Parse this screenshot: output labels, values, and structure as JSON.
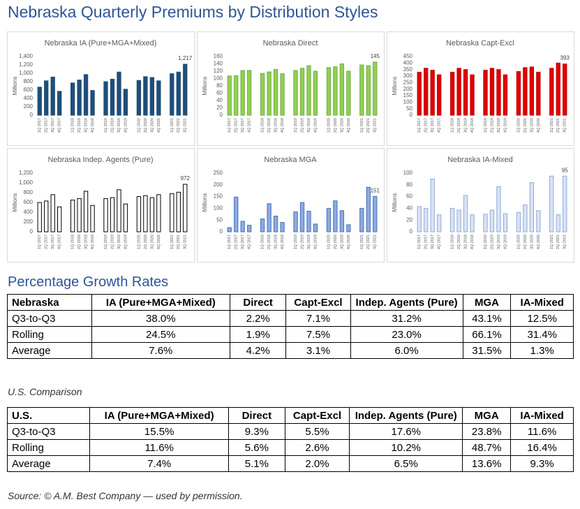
{
  "title": "Nebraska Quarterly Premiums by Distribution Styles",
  "chart_data": [
    {
      "type": "bar",
      "title": "Nebraska IA (Pure+MGA+Mixed)",
      "ylabel": "Millions",
      "color": "#1f4e79",
      "edgecolor": "#1f4e79",
      "categories": [
        "1Q 2017",
        "2Q 2017",
        "3Q 2017",
        "4Q 2017",
        null,
        "1Q 2018",
        "2Q 2018",
        "3Q 2018",
        "4Q 2018",
        null,
        "1Q 2019",
        "2Q 2019",
        "3Q 2019",
        "4Q 2019",
        null,
        "1Q 2020",
        "2Q 2020",
        "3Q 2020",
        "4Q 2020",
        null,
        "1Q 2021",
        "2Q 2021",
        "3Q 2021"
      ],
      "values": [
        670,
        820,
        910,
        570,
        null,
        770,
        840,
        970,
        590,
        null,
        800,
        860,
        1030,
        620,
        null,
        830,
        920,
        900,
        820,
        null,
        990,
        1030,
        1217
      ],
      "value_labels": [
        null,
        null,
        null,
        null,
        null,
        null,
        null,
        null,
        null,
        null,
        null,
        null,
        null,
        null,
        null,
        null,
        null,
        null,
        null,
        null,
        null,
        null,
        "1,217"
      ],
      "ylim": [
        0,
        1400
      ],
      "yticks": [
        0,
        200,
        400,
        600,
        800,
        {
          "value": 1000,
          "label": "1,000"
        },
        {
          "value": 1200,
          "label": "1,200"
        },
        {
          "value": 1400,
          "label": "1,400"
        }
      ],
      "grid": false
    },
    {
      "type": "bar",
      "title": "Nebraska Direct",
      "ylabel": "Millions",
      "color": "#92d050",
      "edgecolor": "#70ad47",
      "categories": [
        "1Q 2017",
        "2Q 2017",
        "3Q 2017",
        "4Q 2017",
        null,
        "1Q 2018",
        "2Q 2018",
        "3Q 2018",
        "4Q 2018",
        null,
        "1Q 2019",
        "2Q 2019",
        "3Q 2019",
        "4Q 2019",
        null,
        "1Q 2020",
        "2Q 2020",
        "3Q 2020",
        "4Q 2020",
        null,
        "1Q 2021",
        "2Q 2021",
        "3Q 2021"
      ],
      "values": [
        107,
        108,
        122,
        122,
        null,
        114,
        118,
        125,
        113,
        null,
        122,
        128,
        135,
        120,
        null,
        130,
        132,
        140,
        120,
        null,
        137,
        135,
        145
      ],
      "value_labels": [
        null,
        null,
        null,
        null,
        null,
        null,
        null,
        null,
        null,
        null,
        null,
        null,
        null,
        null,
        null,
        null,
        null,
        null,
        null,
        null,
        null,
        null,
        "145"
      ],
      "ylim": [
        0,
        160
      ],
      "yticks": [
        0,
        20,
        40,
        60,
        80,
        100,
        120,
        140,
        160
      ],
      "grid": false
    },
    {
      "type": "bar",
      "title": "Nebraska Capt-Excl",
      "ylabel": "Millions",
      "color": "#e00000",
      "edgecolor": "#c00000",
      "categories": [
        "1Q 2017",
        "2Q 2017",
        "3Q 2017",
        "4Q 2017",
        null,
        "1Q 2018",
        "2Q 2018",
        "3Q 2018",
        "4Q 2018",
        null,
        "1Q 2019",
        "2Q 2019",
        "3Q 2019",
        "4Q 2019",
        null,
        "1Q 2020",
        "2Q 2020",
        "3Q 2020",
        "4Q 2020",
        null,
        "1Q 2021",
        "2Q 2021",
        "3Q 2021"
      ],
      "values": [
        330,
        360,
        345,
        310,
        null,
        330,
        360,
        350,
        310,
        null,
        345,
        360,
        350,
        310,
        null,
        335,
        365,
        370,
        330,
        null,
        360,
        400,
        393
      ],
      "value_labels": [
        null,
        null,
        null,
        null,
        null,
        null,
        null,
        null,
        null,
        null,
        null,
        null,
        null,
        null,
        null,
        null,
        null,
        null,
        null,
        null,
        null,
        null,
        "393"
      ],
      "ylim": [
        0,
        450
      ],
      "yticks": [
        0,
        50,
        100,
        150,
        200,
        250,
        300,
        350,
        400,
        450
      ],
      "grid": false
    },
    {
      "type": "bar",
      "title": "Nebraska Indep. Agents (Pure)",
      "ylabel": "Millions",
      "color": "#ffffff",
      "edgecolor": "#000000",
      "categories": [
        "1Q 2017",
        "2Q 2017",
        "3Q 2017",
        "4Q 2017",
        null,
        "1Q 2018",
        "2Q 2018",
        "3Q 2018",
        "4Q 2018",
        null,
        "1Q 2019",
        "2Q 2019",
        "3Q 2019",
        "4Q 2019",
        null,
        "1Q 2020",
        "2Q 2020",
        "3Q 2020",
        "4Q 2020",
        null,
        "1Q 2021",
        "2Q 2021",
        "3Q 2021"
      ],
      "values": [
        600,
        630,
        760,
        510,
        null,
        650,
        680,
        830,
        540,
        null,
        680,
        700,
        860,
        570,
        null,
        720,
        740,
        700,
        760,
        null,
        780,
        810,
        972
      ],
      "value_labels": [
        null,
        null,
        null,
        null,
        null,
        null,
        null,
        null,
        null,
        null,
        null,
        null,
        null,
        null,
        null,
        null,
        null,
        null,
        null,
        null,
        null,
        null,
        "972"
      ],
      "ylim": [
        0,
        1200
      ],
      "yticks": [
        0,
        200,
        400,
        600,
        800,
        {
          "value": 1000,
          "label": "1,000"
        },
        {
          "value": 1200,
          "label": "1,200"
        }
      ],
      "grid": false
    },
    {
      "type": "bar",
      "title": "Nebraska MGA",
      "ylabel": "Millions",
      "color": "#8faadc",
      "edgecolor": "#4472c4",
      "categories": [
        "1Q 2017",
        "2Q 2017",
        "3Q 2017",
        "4Q 2017",
        null,
        "1Q 2018",
        "2Q 2018",
        "3Q 2018",
        "4Q 2018",
        null,
        "1Q 2019",
        "2Q 2019",
        "3Q 2019",
        "4Q 2019",
        null,
        "1Q 2020",
        "2Q 2020",
        "3Q 2020",
        "4Q 2020",
        null,
        "1Q 2021",
        "2Q 2021",
        "3Q 2021"
      ],
      "values": [
        18,
        148,
        45,
        28,
        null,
        55,
        120,
        67,
        40,
        null,
        85,
        125,
        88,
        33,
        null,
        100,
        132,
        90,
        30,
        null,
        100,
        190,
        151
      ],
      "value_labels": [
        null,
        null,
        null,
        null,
        null,
        null,
        null,
        null,
        null,
        null,
        null,
        null,
        null,
        null,
        null,
        null,
        null,
        null,
        null,
        null,
        null,
        null,
        "151"
      ],
      "ylim": [
        0,
        250
      ],
      "yticks": [
        0,
        50,
        100,
        150,
        200,
        250
      ],
      "grid": false
    },
    {
      "type": "bar",
      "title": "Nebraska IA-Mixed",
      "ylabel": "Millions",
      "color": "#dae3f3",
      "edgecolor": "#8faadc",
      "categories": [
        "1Q 2017",
        "2Q 2017",
        "3Q 2017",
        "4Q 2017",
        null,
        "1Q 2018",
        "2Q 2018",
        "3Q 2018",
        "4Q 2018",
        null,
        "1Q 2019",
        "2Q 2019",
        "3Q 2019",
        "4Q 2019",
        null,
        "1Q 2020",
        "2Q 2020",
        "3Q 2020",
        "4Q 2020",
        null,
        "1Q 2021",
        "2Q 2021",
        "3Q 2021"
      ],
      "values": [
        43,
        40,
        90,
        29,
        null,
        40,
        37,
        62,
        29,
        null,
        30,
        37,
        77,
        31,
        null,
        33,
        46,
        84,
        36,
        null,
        95,
        29,
        95
      ],
      "value_labels": [
        null,
        null,
        null,
        null,
        null,
        null,
        null,
        null,
        null,
        null,
        null,
        null,
        null,
        null,
        null,
        null,
        null,
        null,
        null,
        null,
        null,
        null,
        "95"
      ],
      "ylim": [
        0,
        100
      ],
      "yticks": [
        0,
        20,
        40,
        60,
        80,
        100
      ],
      "grid": false
    }
  ],
  "tables": [
    {
      "caption": "Percentage Growth Rates",
      "header": [
        "Nebraska",
        "IA (Pure+MGA+Mixed)",
        "Direct",
        "Capt-Excl",
        "Indep. Agents (Pure)",
        "MGA",
        "IA-Mixed"
      ],
      "rows": [
        [
          "Q3-to-Q3",
          "38.0%",
          "2.2%",
          "7.1%",
          "31.2%",
          "43.1%",
          "12.5%"
        ],
        [
          "Rolling",
          "24.5%",
          "1.9%",
          "7.5%",
          "23.0%",
          "66.1%",
          "31.4%"
        ],
        [
          "Average",
          "7.6%",
          "4.2%",
          "3.1%",
          "6.0%",
          "31.5%",
          "1.3%"
        ]
      ]
    },
    {
      "caption": "U.S. Comparison",
      "header": [
        "U.S.",
        "IA (Pure+MGA+Mixed)",
        "Direct",
        "Capt-Excl",
        "Indep. Agents (Pure)",
        "MGA",
        "IA-Mixed"
      ],
      "rows": [
        [
          "Q3-to-Q3",
          "15.5%",
          "9.3%",
          "5.5%",
          "17.6%",
          "23.8%",
          "11.6%"
        ],
        [
          "Rolling",
          "11.6%",
          "5.6%",
          "2.6%",
          "10.2%",
          "48.7%",
          "16.4%"
        ],
        [
          "Average",
          "7.4%",
          "5.1%",
          "2.0%",
          "6.5%",
          "13.6%",
          "9.3%"
        ]
      ]
    }
  ],
  "source": "Source: © A.M. Best Company — used by permission."
}
